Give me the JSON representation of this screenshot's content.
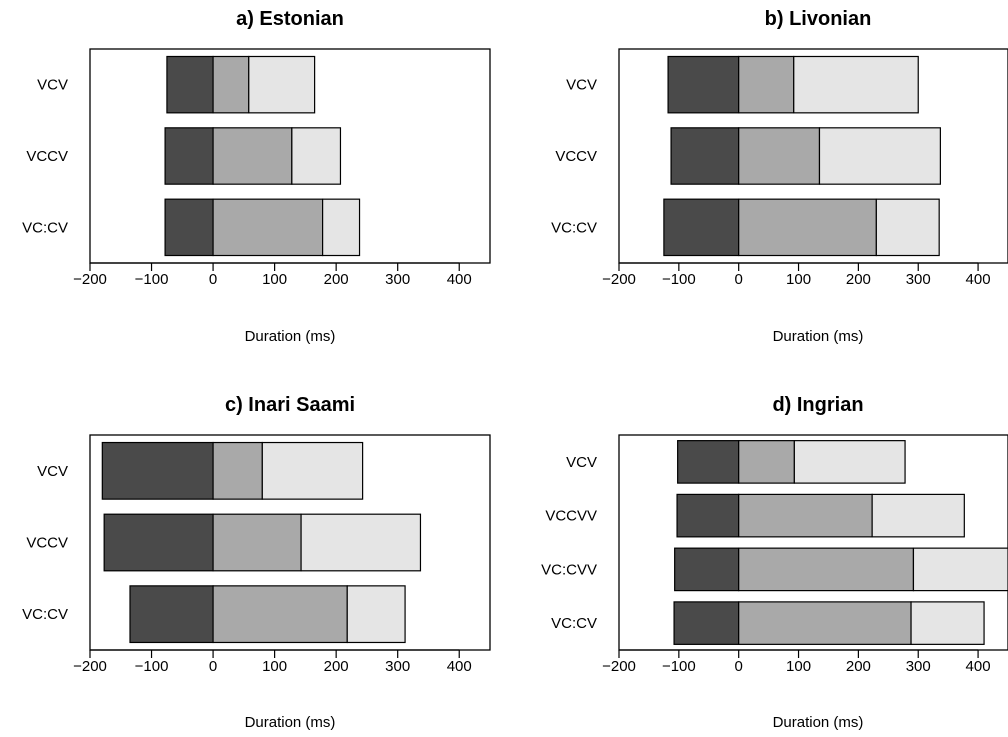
{
  "colors": {
    "segment_1": "#4a4a4a",
    "segment_2": "#a9a9a9",
    "segment_3": "#e5e5e5",
    "outline": "#000000"
  },
  "chart_data": [
    {
      "type": "bar",
      "orientation": "horizontal",
      "stacked": true,
      "title": "a) Estonian",
      "xlabel": "Duration (ms)",
      "xlim": [
        -200,
        450
      ],
      "xticks": [
        -200,
        -100,
        0,
        100,
        200,
        300,
        400
      ],
      "categories": [
        "VCV",
        "VCCV",
        "VC:CV"
      ],
      "segments": [
        [
          [
            -75,
            0
          ],
          [
            0,
            58
          ],
          [
            58,
            165
          ]
        ],
        [
          [
            -78,
            0
          ],
          [
            0,
            128
          ],
          [
            128,
            207
          ]
        ],
        [
          [
            -78,
            0
          ],
          [
            0,
            178
          ],
          [
            178,
            238
          ]
        ]
      ]
    },
    {
      "type": "bar",
      "orientation": "horizontal",
      "stacked": true,
      "title": "b) Livonian",
      "xlabel": "Duration (ms)",
      "xlim": [
        -200,
        450
      ],
      "xticks": [
        -200,
        -100,
        0,
        100,
        200,
        300,
        400
      ],
      "categories": [
        "VCV",
        "VCCV",
        "VC:CV"
      ],
      "segments": [
        [
          [
            -118,
            0
          ],
          [
            0,
            92
          ],
          [
            92,
            300
          ]
        ],
        [
          [
            -113,
            0
          ],
          [
            0,
            135
          ],
          [
            135,
            337
          ]
        ],
        [
          [
            -125,
            0
          ],
          [
            0,
            230
          ],
          [
            230,
            335
          ]
        ]
      ]
    },
    {
      "type": "bar",
      "orientation": "horizontal",
      "stacked": true,
      "title": "c) Inari Saami",
      "xlabel": "Duration (ms)",
      "xlim": [
        -200,
        450
      ],
      "xticks": [
        -200,
        -100,
        0,
        100,
        200,
        300,
        400
      ],
      "categories": [
        "VCV",
        "VCCV",
        "VC:CV"
      ],
      "segments": [
        [
          [
            -180,
            0
          ],
          [
            0,
            80
          ],
          [
            80,
            243
          ]
        ],
        [
          [
            -177,
            0
          ],
          [
            0,
            143
          ],
          [
            143,
            337
          ]
        ],
        [
          [
            -135,
            0
          ],
          [
            0,
            218
          ],
          [
            218,
            312
          ]
        ]
      ]
    },
    {
      "type": "bar",
      "orientation": "horizontal",
      "stacked": true,
      "title": "d) Ingrian",
      "xlabel": "Duration (ms)",
      "xlim": [
        -200,
        450
      ],
      "xticks": [
        -200,
        -100,
        0,
        100,
        200,
        300,
        400
      ],
      "categories": [
        "VCV",
        "VCCVV",
        "VC:CVV",
        "VC:CV"
      ],
      "segments": [
        [
          [
            -102,
            0
          ],
          [
            0,
            93
          ],
          [
            93,
            278
          ]
        ],
        [
          [
            -103,
            0
          ],
          [
            0,
            223
          ],
          [
            223,
            377
          ]
        ],
        [
          [
            -107,
            0
          ],
          [
            0,
            292
          ],
          [
            292,
            450
          ]
        ],
        [
          [
            -108,
            0
          ],
          [
            0,
            288
          ],
          [
            288,
            410
          ]
        ]
      ]
    }
  ]
}
